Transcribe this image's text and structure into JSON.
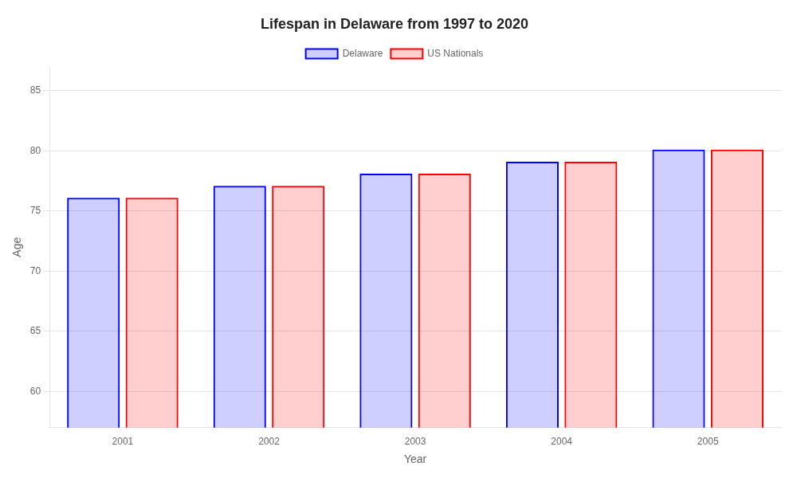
{
  "chart_data": {
    "type": "bar",
    "title": "Lifespan in Delaware from 1997 to 2020",
    "xlabel": "Year",
    "ylabel": "Age",
    "categories": [
      "2001",
      "2002",
      "2003",
      "2004",
      "2005"
    ],
    "series": [
      {
        "name": "Delaware",
        "color": "#0000ff",
        "values": [
          76.1,
          77.1,
          78.1,
          79.1,
          80.1
        ]
      },
      {
        "name": "US Nationals",
        "color": "#ff0000",
        "values": [
          76.1,
          77.1,
          78.1,
          79.1,
          80.1
        ]
      }
    ],
    "ylim": [
      57,
      87
    ],
    "yticks": [
      60,
      65,
      70,
      75,
      80,
      85
    ],
    "grid": true,
    "legend": "top"
  }
}
